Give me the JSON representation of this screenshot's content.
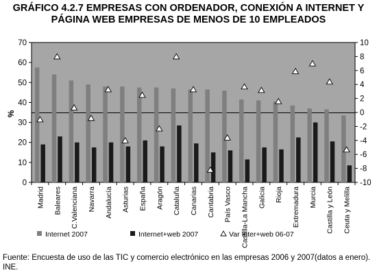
{
  "title_lines": [
    "GRÁFICO 4.2.7 EMPRESAS CON ORDENADOR, CONEXIÓN A INTERNET Y",
    "PÁGINA WEB EMPRESAS DE MENOS DE 10 EMPLEADOS"
  ],
  "source": "Fuente: Encuesta de uso de las TIC y comercio electrónico en las empresas  2006 y 2007(datos a enero). INE.",
  "colors": {
    "plot_bg": "#a6a6a6",
    "internet": "#7f7f7f",
    "web": "#1a1a1a",
    "triangle_fill": "#ffffff",
    "triangle_stroke": "#000000"
  },
  "chart_data": {
    "type": "bar",
    "categories": [
      "Madrid",
      "Baleares",
      "C.Valenciana",
      "Navarra",
      "Andalucía",
      "Asturias",
      "España",
      "Aragón",
      "Cataluña",
      "Canarias",
      "Cantabria",
      "País Vasco",
      "Castilla-La Mancha",
      "Galicia",
      "Rioja",
      "Extremadura",
      "Murcia",
      "Castilla y León",
      "Ceuta y Melilla"
    ],
    "series": [
      {
        "name": "Internet 2007",
        "axis": "left",
        "marker": "bar",
        "values": [
          57.5,
          54,
          51,
          49,
          48,
          48,
          47.5,
          47.5,
          47,
          46.5,
          46.5,
          46,
          41.5,
          41,
          40.5,
          38.5,
          37,
          36.5,
          33.5
        ]
      },
      {
        "name": "Internet+web 2007",
        "axis": "left",
        "marker": "bar",
        "values": [
          19,
          23,
          20,
          17.5,
          20,
          18,
          21,
          18,
          28.5,
          19.5,
          15,
          16,
          11.5,
          17.5,
          16.5,
          22.5,
          30,
          20.5,
          8.5
        ]
      },
      {
        "name": "Var Inter+web 06-07",
        "axis": "right",
        "marker": "triangle",
        "values": [
          -1,
          8,
          0.7,
          -0.8,
          3.3,
          -4,
          2.5,
          -2.3,
          8,
          3.3,
          -8.2,
          -3.6,
          3.7,
          3.2,
          1.6,
          5.9,
          7,
          4.4,
          -5.3
        ]
      }
    ],
    "ylabel": "%",
    "ylim": [
      0,
      70
    ],
    "yticks": [
      0,
      10,
      20,
      30,
      40,
      50,
      60,
      70
    ],
    "y2lim": [
      -10,
      10
    ],
    "y2ticks": [
      -10,
      -8,
      -6,
      -4,
      -2,
      0,
      2,
      4,
      6,
      8,
      10
    ],
    "grid": false,
    "legend": "bottom"
  }
}
